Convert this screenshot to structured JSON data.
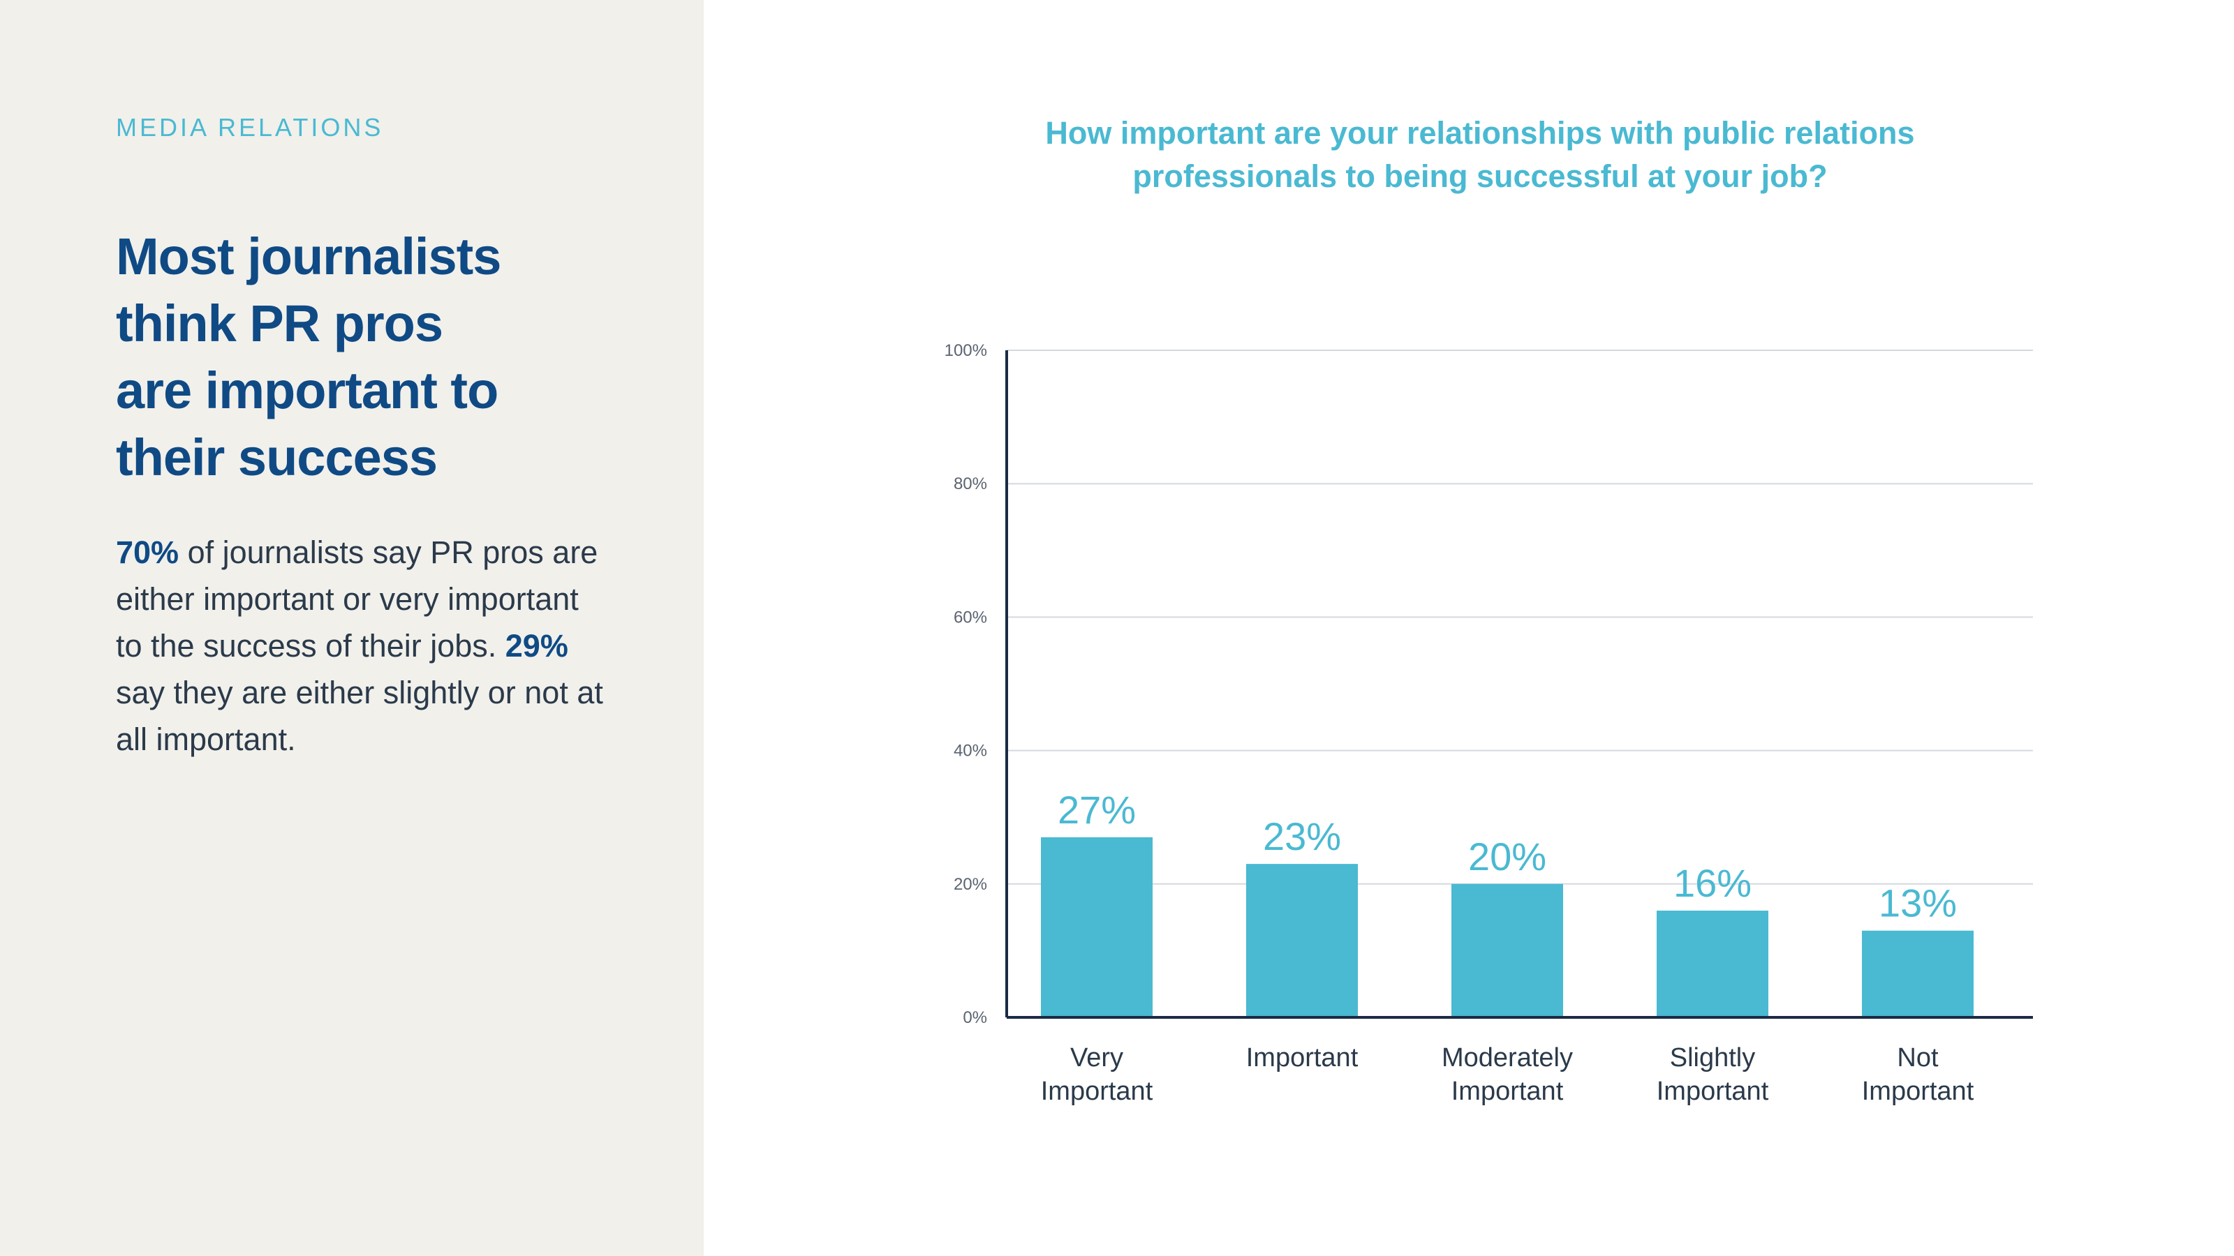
{
  "section_label": "MEDIA RELATIONS",
  "headline": [
    "Most journalists",
    "think PR pros",
    "are important to",
    "their success"
  ],
  "body": {
    "stat1": "70%",
    "text1": " of journalists say PR pros are either important or very important to the success of their jobs. ",
    "stat2": "29%",
    "text2": " say they are either slightly or not at all important."
  },
  "colors": {
    "accent": "#4ab9d2",
    "navy": "#0f4a85",
    "axis": "#1a2b45",
    "grid": "#d5d9de",
    "panel": "#f1f0eb"
  },
  "chart_data": {
    "type": "bar",
    "title_lines": [
      "How important are your relationships with public relations",
      "professionals to being successful at your job?"
    ],
    "categories": [
      [
        "Very",
        "Important"
      ],
      [
        "Important"
      ],
      [
        "Moderately",
        "Important"
      ],
      [
        "Slightly",
        "Important"
      ],
      [
        "Not",
        "Important"
      ]
    ],
    "values": [
      27,
      23,
      20,
      16,
      13
    ],
    "value_labels": [
      "27%",
      "23%",
      "20%",
      "16%",
      "13%"
    ],
    "yticks": [
      0,
      20,
      40,
      60,
      80,
      100
    ],
    "ytick_labels": [
      "0%",
      "20%",
      "40%",
      "60%",
      "80%",
      "100%"
    ],
    "ylim": [
      0,
      100
    ],
    "grid": true
  }
}
